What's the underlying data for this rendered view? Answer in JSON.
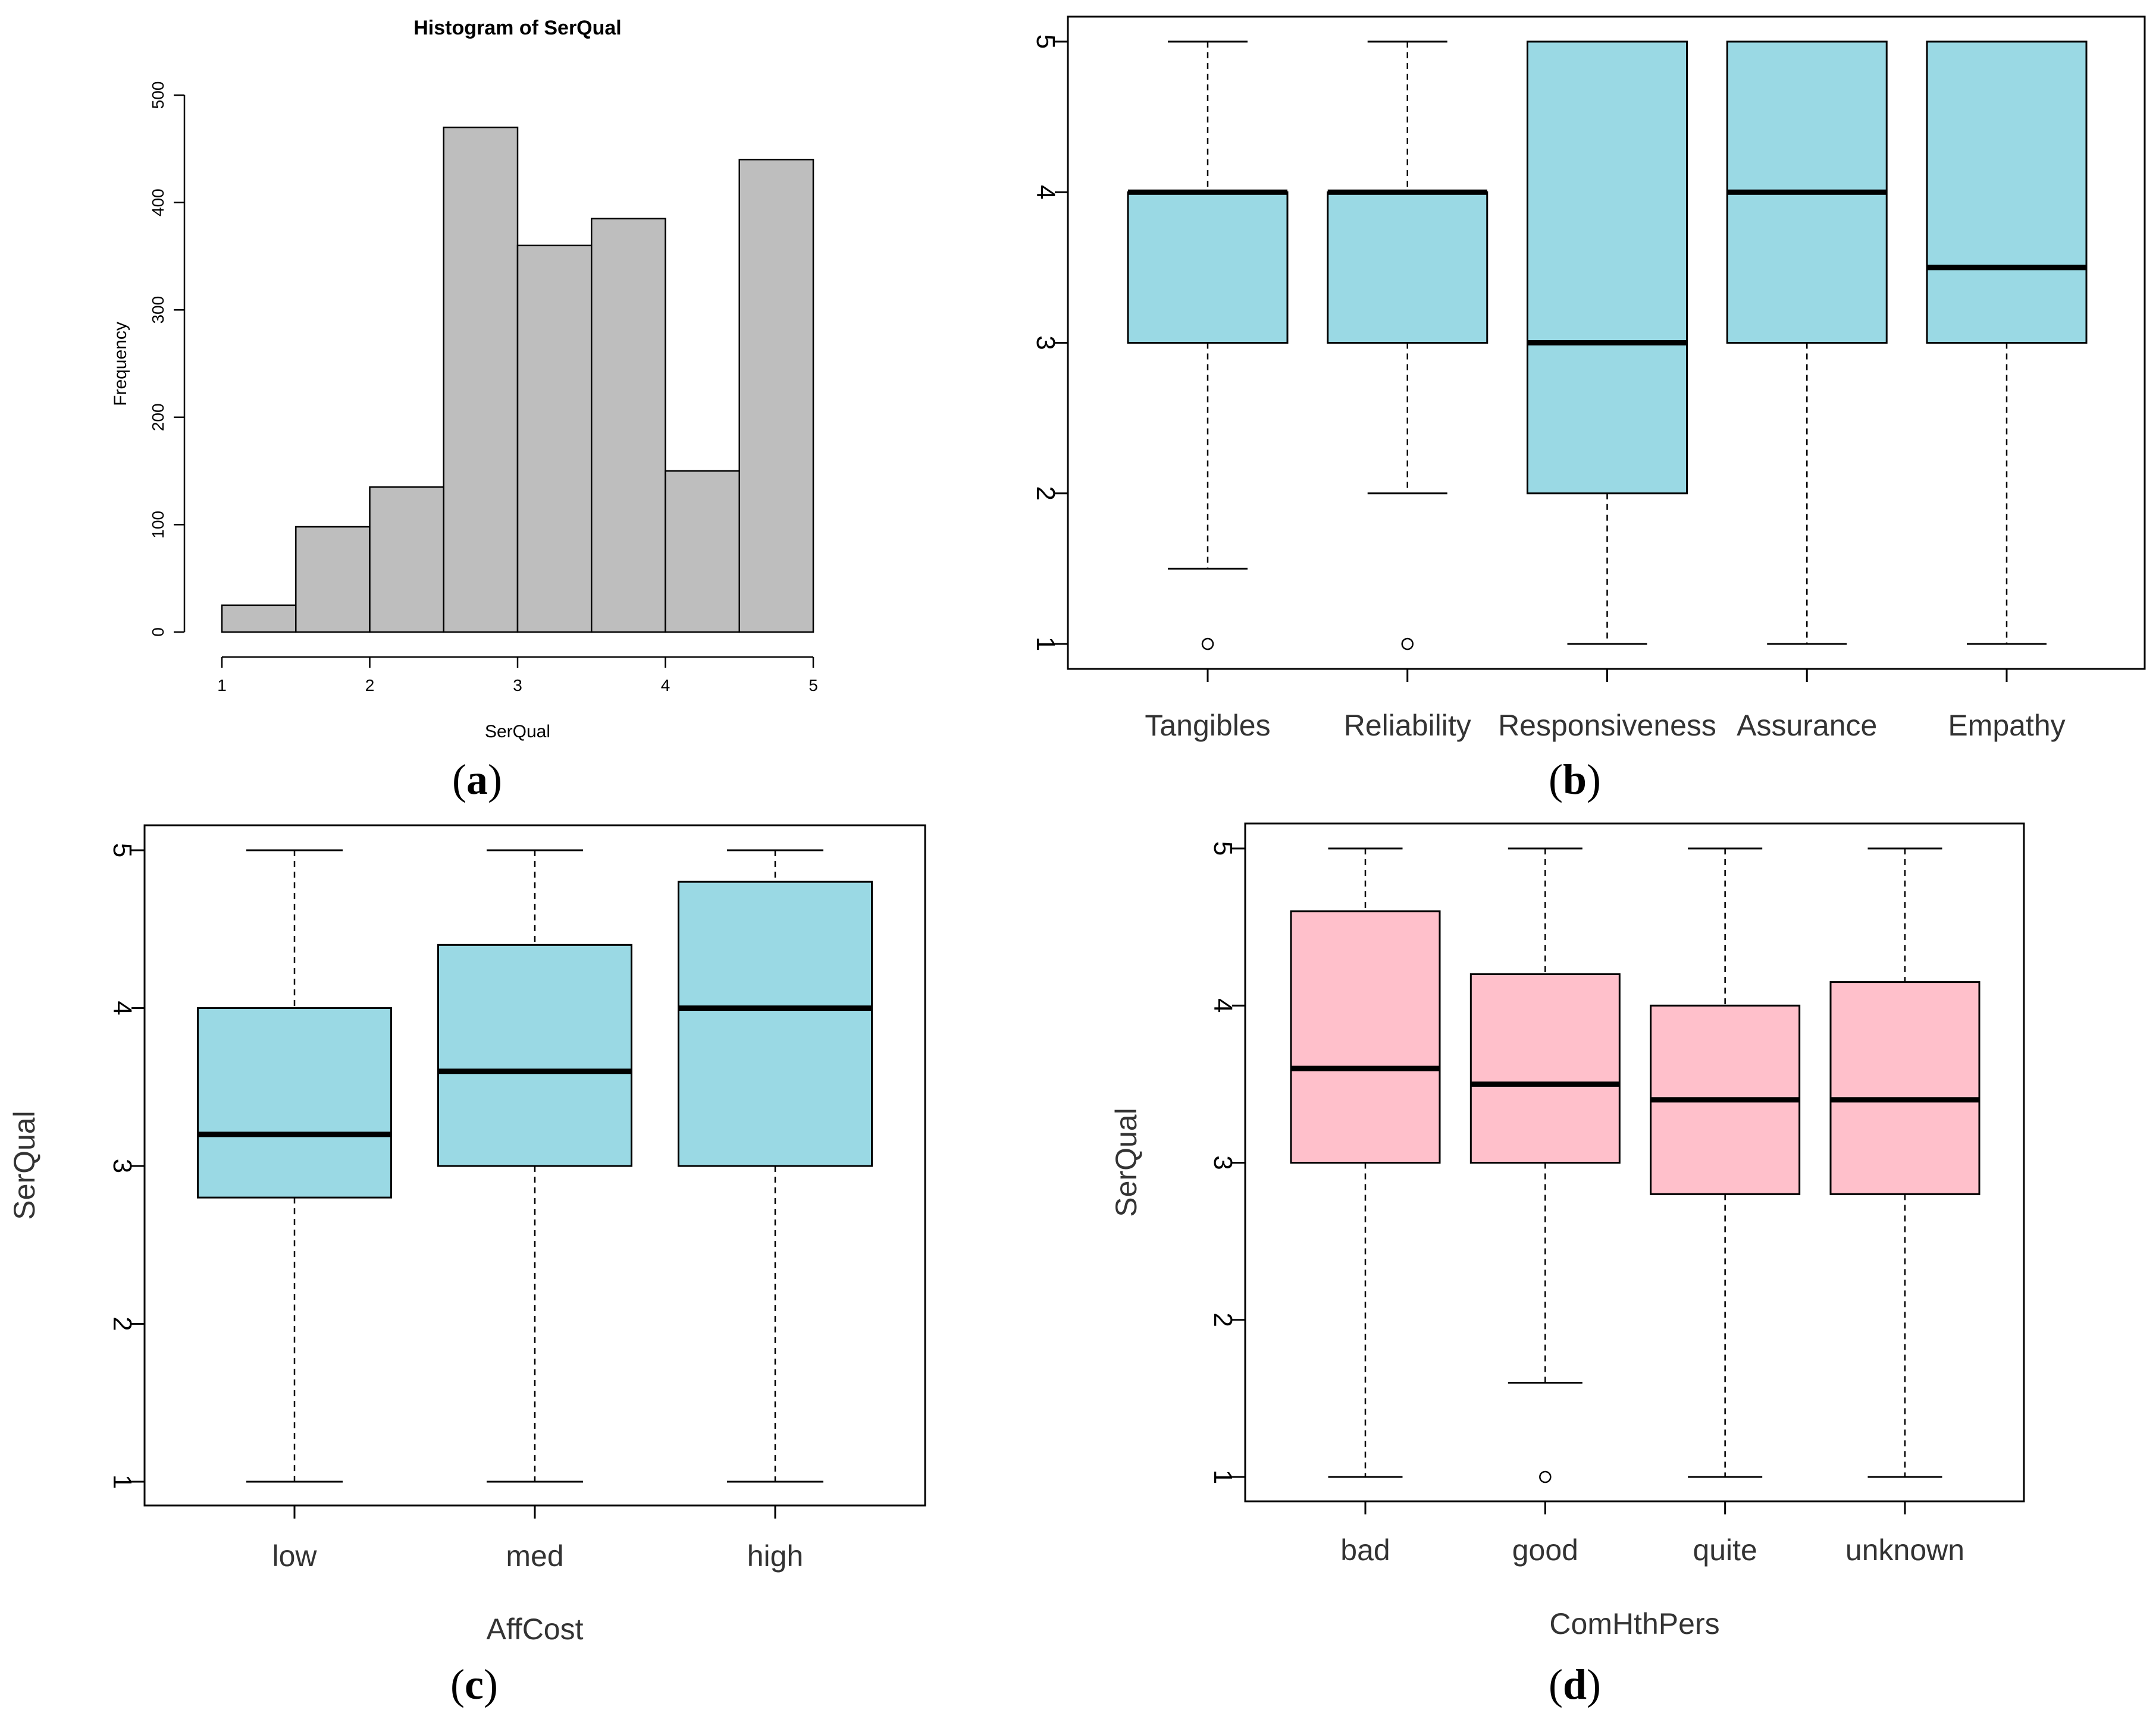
{
  "chart_data": [
    {
      "panel": "a",
      "type": "bar",
      "title": "Histogram of SerQual",
      "xlabel": "SerQual",
      "ylabel": "Frequency",
      "bin_edges": [
        1,
        1.5,
        2,
        2.5,
        3,
        3.5,
        4,
        4.5,
        5
      ],
      "values": [
        25,
        98,
        135,
        470,
        360,
        385,
        150,
        440
      ],
      "xticks": [
        1,
        2,
        3,
        4,
        5
      ],
      "yticks": [
        0,
        100,
        200,
        300,
        400,
        500
      ],
      "xlim": [
        1,
        5
      ],
      "ylim": [
        0,
        500
      ],
      "bar_color": "#bebebe"
    },
    {
      "panel": "b",
      "type": "boxplot",
      "xlabel": "",
      "ylabel": "",
      "yticks": [
        1,
        2,
        3,
        4,
        5
      ],
      "ylim": [
        1,
        5
      ],
      "fill": "#9ad9e4",
      "categories": [
        "Tangibles",
        "Reliability",
        "Responsiveness",
        "Assurance",
        "Empathy"
      ],
      "boxes": [
        {
          "whisker_low": 1.5,
          "q1": 3,
          "median": 4,
          "q3": 4,
          "whisker_high": 5,
          "outliers": [
            1
          ]
        },
        {
          "whisker_low": 2,
          "q1": 3,
          "median": 4,
          "q3": 4,
          "whisker_high": 5,
          "outliers": [
            1
          ]
        },
        {
          "whisker_low": 1,
          "q1": 2,
          "median": 3,
          "q3": 5,
          "whisker_high": 5,
          "outliers": []
        },
        {
          "whisker_low": 1,
          "q1": 3,
          "median": 4,
          "q3": 5,
          "whisker_high": 5,
          "outliers": []
        },
        {
          "whisker_low": 1,
          "q1": 3,
          "median": 3.5,
          "q3": 5,
          "whisker_high": 5,
          "outliers": []
        }
      ]
    },
    {
      "panel": "c",
      "type": "boxplot",
      "xlabel": "AffCost",
      "ylabel": "SerQual",
      "yticks": [
        1,
        2,
        3,
        4,
        5
      ],
      "ylim": [
        1,
        5
      ],
      "fill": "#9ad9e4",
      "categories": [
        "low",
        "med",
        "high"
      ],
      "boxes": [
        {
          "whisker_low": 1,
          "q1": 2.8,
          "median": 3.2,
          "q3": 4,
          "whisker_high": 5,
          "outliers": []
        },
        {
          "whisker_low": 1,
          "q1": 3,
          "median": 3.6,
          "q3": 4.4,
          "whisker_high": 5,
          "outliers": []
        },
        {
          "whisker_low": 1,
          "q1": 3,
          "median": 4,
          "q3": 4.8,
          "whisker_high": 5,
          "outliers": []
        }
      ]
    },
    {
      "panel": "d",
      "type": "boxplot",
      "xlabel": "ComHthPers",
      "ylabel": "SerQual",
      "yticks": [
        1,
        2,
        3,
        4,
        5
      ],
      "ylim": [
        1,
        5
      ],
      "fill": "#ffc0cb",
      "categories": [
        "bad",
        "good",
        "quite",
        "unknown"
      ],
      "boxes": [
        {
          "whisker_low": 1,
          "q1": 3,
          "median": 3.6,
          "q3": 4.6,
          "whisker_high": 5,
          "outliers": []
        },
        {
          "whisker_low": 1.6,
          "q1": 3,
          "median": 3.5,
          "q3": 4.2,
          "whisker_high": 5,
          "outliers": [
            1
          ]
        },
        {
          "whisker_low": 1,
          "q1": 2.8,
          "median": 3.4,
          "q3": 4,
          "whisker_high": 5,
          "outliers": []
        },
        {
          "whisker_low": 1,
          "q1": 2.8,
          "median": 3.4,
          "q3": 4.15,
          "whisker_high": 5,
          "outliers": []
        }
      ]
    }
  ],
  "panel_labels": {
    "a": {
      "open": "(",
      "letter": "a",
      "close": ")"
    },
    "b": {
      "open": "(",
      "letter": "b",
      "close": ")"
    },
    "c": {
      "open": "(",
      "letter": "c",
      "close": ")"
    },
    "d": {
      "open": "(",
      "letter": "d",
      "close": ")"
    }
  }
}
